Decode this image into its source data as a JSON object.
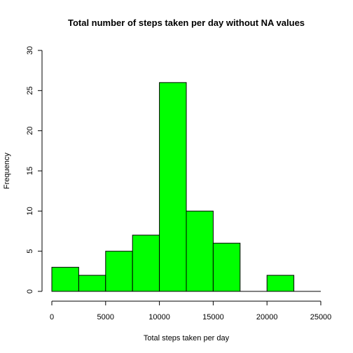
{
  "chart_data": {
    "type": "bar",
    "title": "Total number of steps taken per day without NA values",
    "xlabel": "Total steps taken per day",
    "ylabel": "Frequency",
    "bins": [
      {
        "start": 0,
        "end": 2500,
        "count": 3
      },
      {
        "start": 2500,
        "end": 5000,
        "count": 2
      },
      {
        "start": 5000,
        "end": 7500,
        "count": 5
      },
      {
        "start": 7500,
        "end": 10000,
        "count": 7
      },
      {
        "start": 10000,
        "end": 12500,
        "count": 26
      },
      {
        "start": 12500,
        "end": 15000,
        "count": 10
      },
      {
        "start": 15000,
        "end": 17500,
        "count": 6
      },
      {
        "start": 17500,
        "end": 20000,
        "count": 0
      },
      {
        "start": 20000,
        "end": 22500,
        "count": 2
      },
      {
        "start": 22500,
        "end": 25000,
        "count": 0
      }
    ],
    "xlim": [
      0,
      25000
    ],
    "ylim": [
      0,
      30
    ],
    "xticks": [
      "0",
      "5000",
      "10000",
      "15000",
      "20000",
      "25000"
    ],
    "yticks": [
      "0",
      "5",
      "10",
      "15",
      "20",
      "25",
      "30"
    ],
    "bar_color": "#00ff00",
    "bar_border_color": "#000000",
    "grid": false
  }
}
